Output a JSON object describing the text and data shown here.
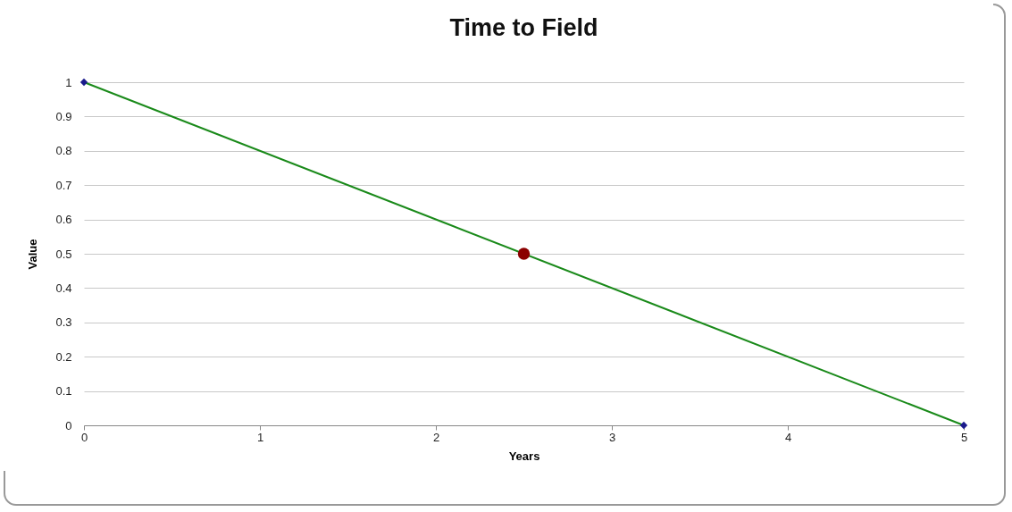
{
  "chart_data": {
    "type": "line",
    "title": "Time to Field",
    "xlabel": "Years",
    "ylabel": "Value",
    "xlim": [
      0,
      5
    ],
    "xticks": [
      0,
      1,
      2,
      3,
      4,
      5
    ],
    "ylim": [
      0,
      1
    ],
    "yticks": [
      0,
      0.1,
      0.2,
      0.3,
      0.4,
      0.5,
      0.6,
      0.7,
      0.8,
      0.9,
      1
    ],
    "grid": "y",
    "series": [
      {
        "color": "#1a8a1a",
        "x": [
          0,
          5
        ],
        "values": [
          1,
          0
        ],
        "marker": "none"
      },
      {
        "type": "scatter",
        "color": "#1a1a8c",
        "x": [
          0,
          5
        ],
        "values": [
          1,
          0
        ],
        "marker": "diamond"
      },
      {
        "type": "scatter",
        "color": "#8b0000",
        "x": [
          2.5
        ],
        "values": [
          0.5
        ],
        "marker": "circle"
      }
    ]
  }
}
